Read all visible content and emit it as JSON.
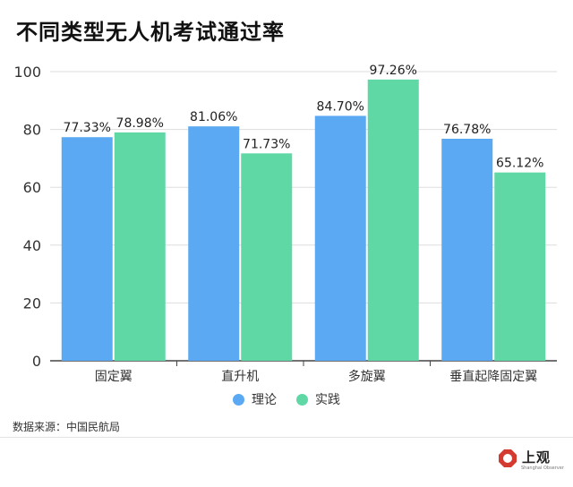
{
  "title": "不同类型无人机考试通过率",
  "source": "数据来源：中国民航局",
  "logo": {
    "text": "上观",
    "subtitle": "Shanghai Observer"
  },
  "colors": {
    "theory": "#5aa9f2",
    "practice": "#5fd8a6",
    "logo_red": "#d43a2f"
  },
  "chart_data": {
    "type": "bar",
    "title": "不同类型无人机考试通过率",
    "categories": [
      "固定翼",
      "直升机",
      "多旋翼",
      "垂直起降固定翼"
    ],
    "series": [
      {
        "name": "理论",
        "values": [
          77.33,
          81.06,
          84.7,
          76.78
        ],
        "labels": [
          "77.33%",
          "81.06%",
          "84.70%",
          "76.78%"
        ],
        "color": "#5aa9f2"
      },
      {
        "name": "实践",
        "values": [
          78.98,
          71.73,
          97.26,
          65.12
        ],
        "labels": [
          "78.98%",
          "71.73%",
          "97.26%",
          "65.12%"
        ],
        "color": "#5fd8a6"
      }
    ],
    "ylim": [
      0,
      100
    ],
    "yticks": [
      0,
      20,
      40,
      60,
      80,
      100
    ],
    "xlabel": "",
    "ylabel": "",
    "grid": true,
    "legend": "bottom-center"
  }
}
